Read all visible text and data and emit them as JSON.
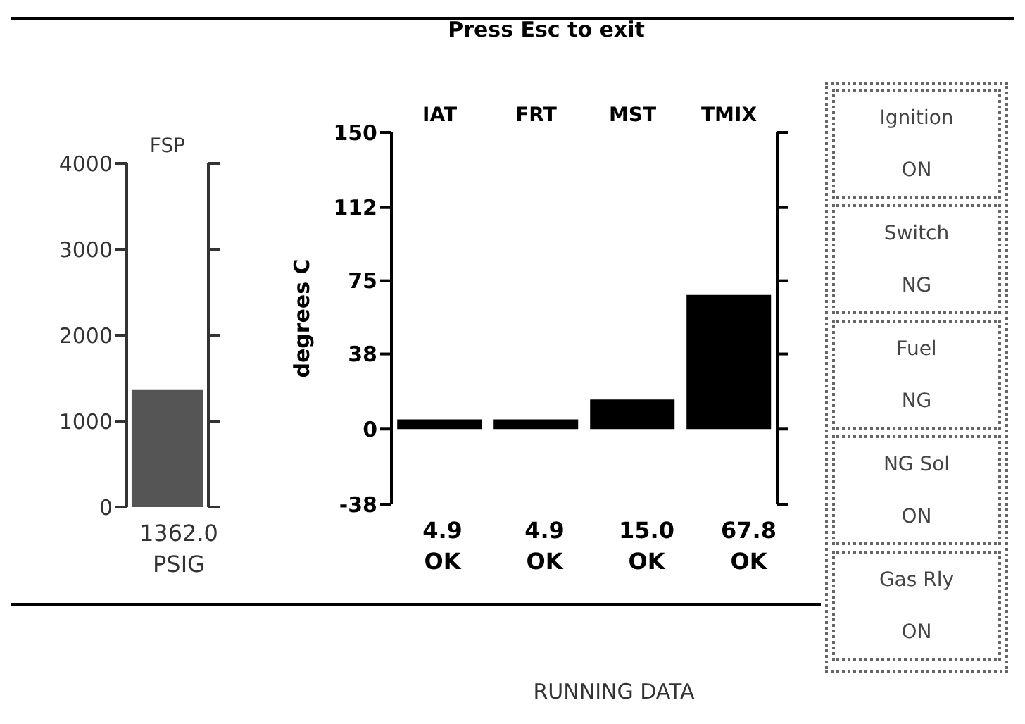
{
  "chart_data": [
    {
      "type": "bar",
      "categories": [
        "FSP"
      ],
      "values": [
        1362.0
      ],
      "color": "#555555",
      "ylim": [
        0,
        4000
      ],
      "yticks": [
        0,
        1000,
        2000,
        3000,
        4000
      ],
      "value_labels": [
        "1362.0"
      ],
      "annotations": [
        "PSIG"
      ]
    },
    {
      "type": "bar",
      "title": "Press Esc to exit",
      "categories": [
        "IAT",
        "FRT",
        "MST",
        "TMIX"
      ],
      "values": [
        4.9,
        4.9,
        15.0,
        67.8
      ],
      "color": "#000000",
      "ylim": [
        -38,
        150
      ],
      "yticks": [
        -38,
        0,
        38,
        75,
        112,
        150
      ],
      "ylabel": "degrees C",
      "value_labels": [
        "4.9",
        "4.9",
        "15.0",
        "67.8"
      ],
      "annotations": [
        "OK",
        "OK",
        "OK",
        "OK"
      ]
    },
    {
      "type": "other",
      "categories": [
        "Ignition",
        "Switch",
        "Fuel",
        "NG Sol",
        "Gas Rly"
      ],
      "value_labels": [
        "ON",
        "NG",
        "NG",
        "ON",
        "ON"
      ],
      "annotations": [
        "RUNNING DATA"
      ]
    }
  ]
}
